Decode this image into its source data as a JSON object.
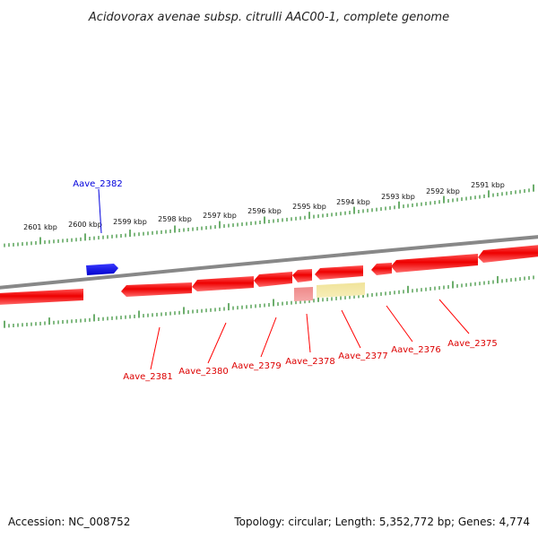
{
  "title": "Acidovorax avenae subsp. citrulli AAC00-1, complete genome",
  "footer": {
    "accession": "Accession: NC_008752",
    "summary": "Topology: circular; Length: 5,352,772 bp; Genes: 4,774"
  },
  "colors": {
    "forward_gene": "#0000dd",
    "reverse_gene": "#ff0000",
    "pseudo_gene": "#f2e6a0",
    "backbone": "#888888",
    "ticks": "#2e8b2e"
  },
  "scale_labels": [
    "2601 kbp",
    "2600 kbp",
    "2599 kbp",
    "2598 kbp",
    "2597 kbp",
    "2596 kbp",
    "2595 kbp",
    "2594 kbp",
    "2593 kbp",
    "2592 kbp",
    "2591 kbp"
  ],
  "genes": [
    {
      "name": "Aave_2382",
      "strand": "forward"
    },
    {
      "name": "Aave_2381",
      "strand": "reverse"
    },
    {
      "name": "Aave_2380",
      "strand": "reverse"
    },
    {
      "name": "Aave_2379",
      "strand": "reverse"
    },
    {
      "name": "Aave_2378",
      "strand": "reverse"
    },
    {
      "name": "Aave_2377",
      "strand": "reverse"
    },
    {
      "name": "Aave_2376",
      "strand": "reverse"
    },
    {
      "name": "Aave_2375",
      "strand": "reverse"
    }
  ]
}
